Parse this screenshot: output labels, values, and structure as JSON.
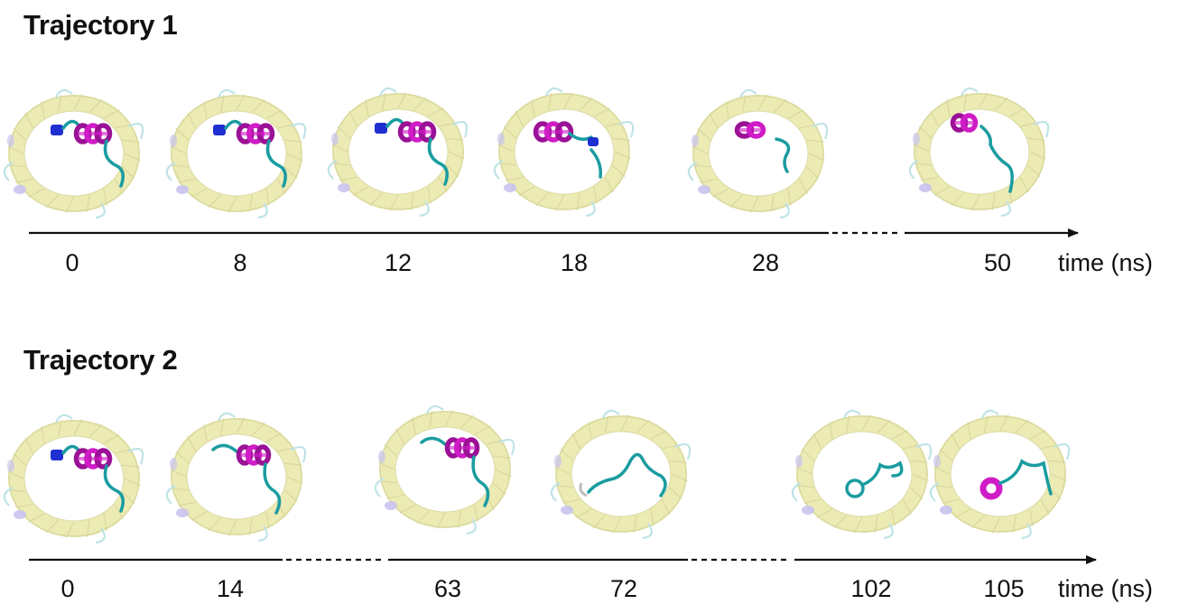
{
  "trajectory1": {
    "title": "Trajectory 1",
    "time_unit": "time (ns)",
    "times": [
      "0",
      "8",
      "12",
      "18",
      "28",
      "50"
    ]
  },
  "trajectory2": {
    "title": "Trajectory 2",
    "time_unit": "time (ns)",
    "times": [
      "0",
      "14",
      "63",
      "72",
      "102",
      "105"
    ]
  },
  "colors": {
    "barrel": "#ecebb4",
    "barrel_edge": "#d6d49a",
    "loop": "#bfe3e6",
    "helix": "#d01cc6",
    "helix_dark": "#9a1196",
    "n_terminus": "#1f2fd2",
    "coil": "#1a9ca0",
    "lipid": "#c9c3ee",
    "axis": "#111111"
  }
}
